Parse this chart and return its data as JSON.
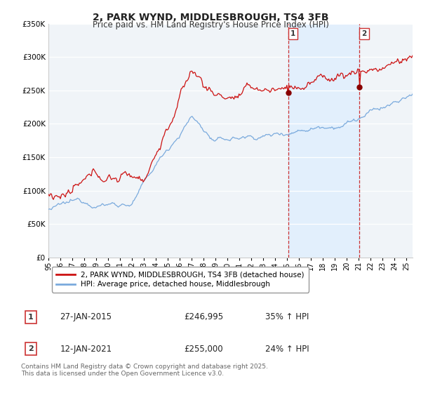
{
  "title_line1": "2, PARK WYND, MIDDLESBROUGH, TS4 3FB",
  "title_line2": "Price paid vs. HM Land Registry's House Price Index (HPI)",
  "ylim": [
    0,
    350000
  ],
  "yticks": [
    0,
    50000,
    100000,
    150000,
    200000,
    250000,
    300000,
    350000
  ],
  "ytick_labels": [
    "£0",
    "£50K",
    "£100K",
    "£150K",
    "£200K",
    "£250K",
    "£300K",
    "£350K"
  ],
  "xlim_start": 1995.0,
  "xlim_end": 2025.5,
  "sale1_x": 2015.07,
  "sale1_y": 246995,
  "sale2_x": 2021.04,
  "sale2_y": 255000,
  "sale1_date": "27-JAN-2015",
  "sale1_price": "£246,995",
  "sale1_hpi": "35% ↑ HPI",
  "sale2_date": "12-JAN-2021",
  "sale2_price": "£255,000",
  "sale2_hpi": "24% ↑ HPI",
  "legend_line1": "2, PARK WYND, MIDDLESBROUGH, TS4 3FB (detached house)",
  "legend_line2": "HPI: Average price, detached house, Middlesbrough",
  "footer": "Contains HM Land Registry data © Crown copyright and database right 2025.\nThis data is licensed under the Open Government Licence v3.0.",
  "line_color_red": "#cc1111",
  "line_color_blue": "#7aaadd",
  "vline_color": "#cc3333",
  "shade_color": "#ddeeff",
  "background_color": "#f0f4f8",
  "grid_color": "#ffffff"
}
